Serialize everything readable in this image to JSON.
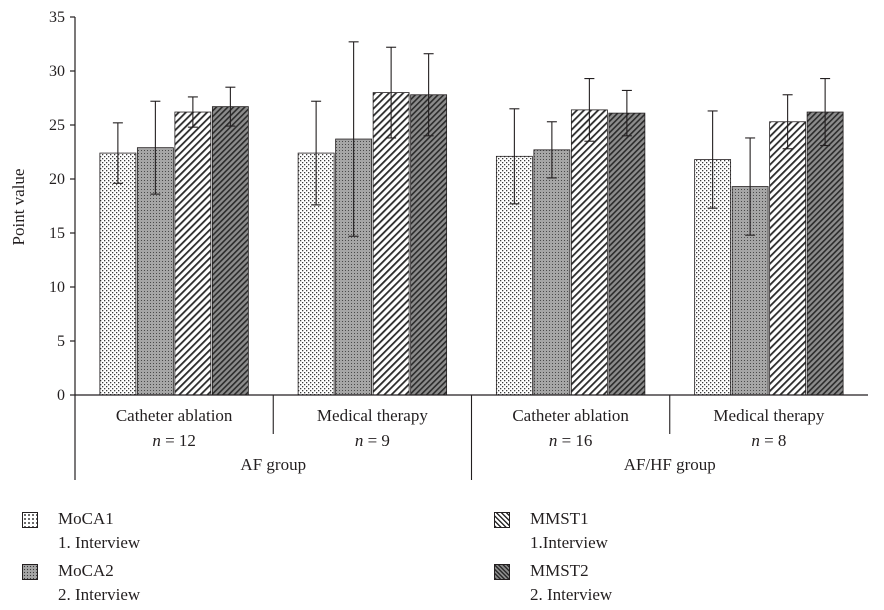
{
  "chart_data": {
    "type": "bar",
    "ylabel": "Point value",
    "ylim": [
      0,
      35
    ],
    "yticks": [
      0,
      5,
      10,
      15,
      20,
      25,
      30,
      35
    ],
    "categories": [
      {
        "label": "Catheter ablation",
        "n": "= 12"
      },
      {
        "label": "Medical therapy",
        "n": "= 9"
      },
      {
        "label": "Catheter ablation",
        "n": "= 16"
      },
      {
        "label": "Medical therapy",
        "n": "= 8"
      }
    ],
    "groups": [
      {
        "label": "AF group",
        "categories": [
          0,
          1
        ]
      },
      {
        "label": "AF/HF group",
        "categories": [
          2,
          3
        ]
      }
    ],
    "series": [
      {
        "name": "MoCA1",
        "sub": "1. Interview",
        "pattern": "dots-light",
        "values": [
          22.4,
          22.4,
          22.1,
          21.8
        ],
        "errors": [
          2.8,
          4.8,
          4.4,
          4.5
        ]
      },
      {
        "name": "MoCA2",
        "sub": "2. Interview",
        "pattern": "dots-dark",
        "values": [
          22.9,
          23.7,
          22.7,
          19.3
        ],
        "errors": [
          4.3,
          9.0,
          2.6,
          4.5
        ]
      },
      {
        "name": "MMST1",
        "sub": "1.Interview",
        "pattern": "hatch-light",
        "values": [
          26.2,
          28.0,
          26.4,
          25.3
        ],
        "errors": [
          1.4,
          4.2,
          2.9,
          2.5
        ]
      },
      {
        "name": "MMST2",
        "sub": "2. Interview",
        "pattern": "hatch-dark",
        "values": [
          26.7,
          27.8,
          26.1,
          26.2
        ],
        "errors": [
          1.8,
          3.8,
          2.1,
          3.1
        ]
      }
    ]
  },
  "legend": {
    "n_symbol": "n"
  }
}
